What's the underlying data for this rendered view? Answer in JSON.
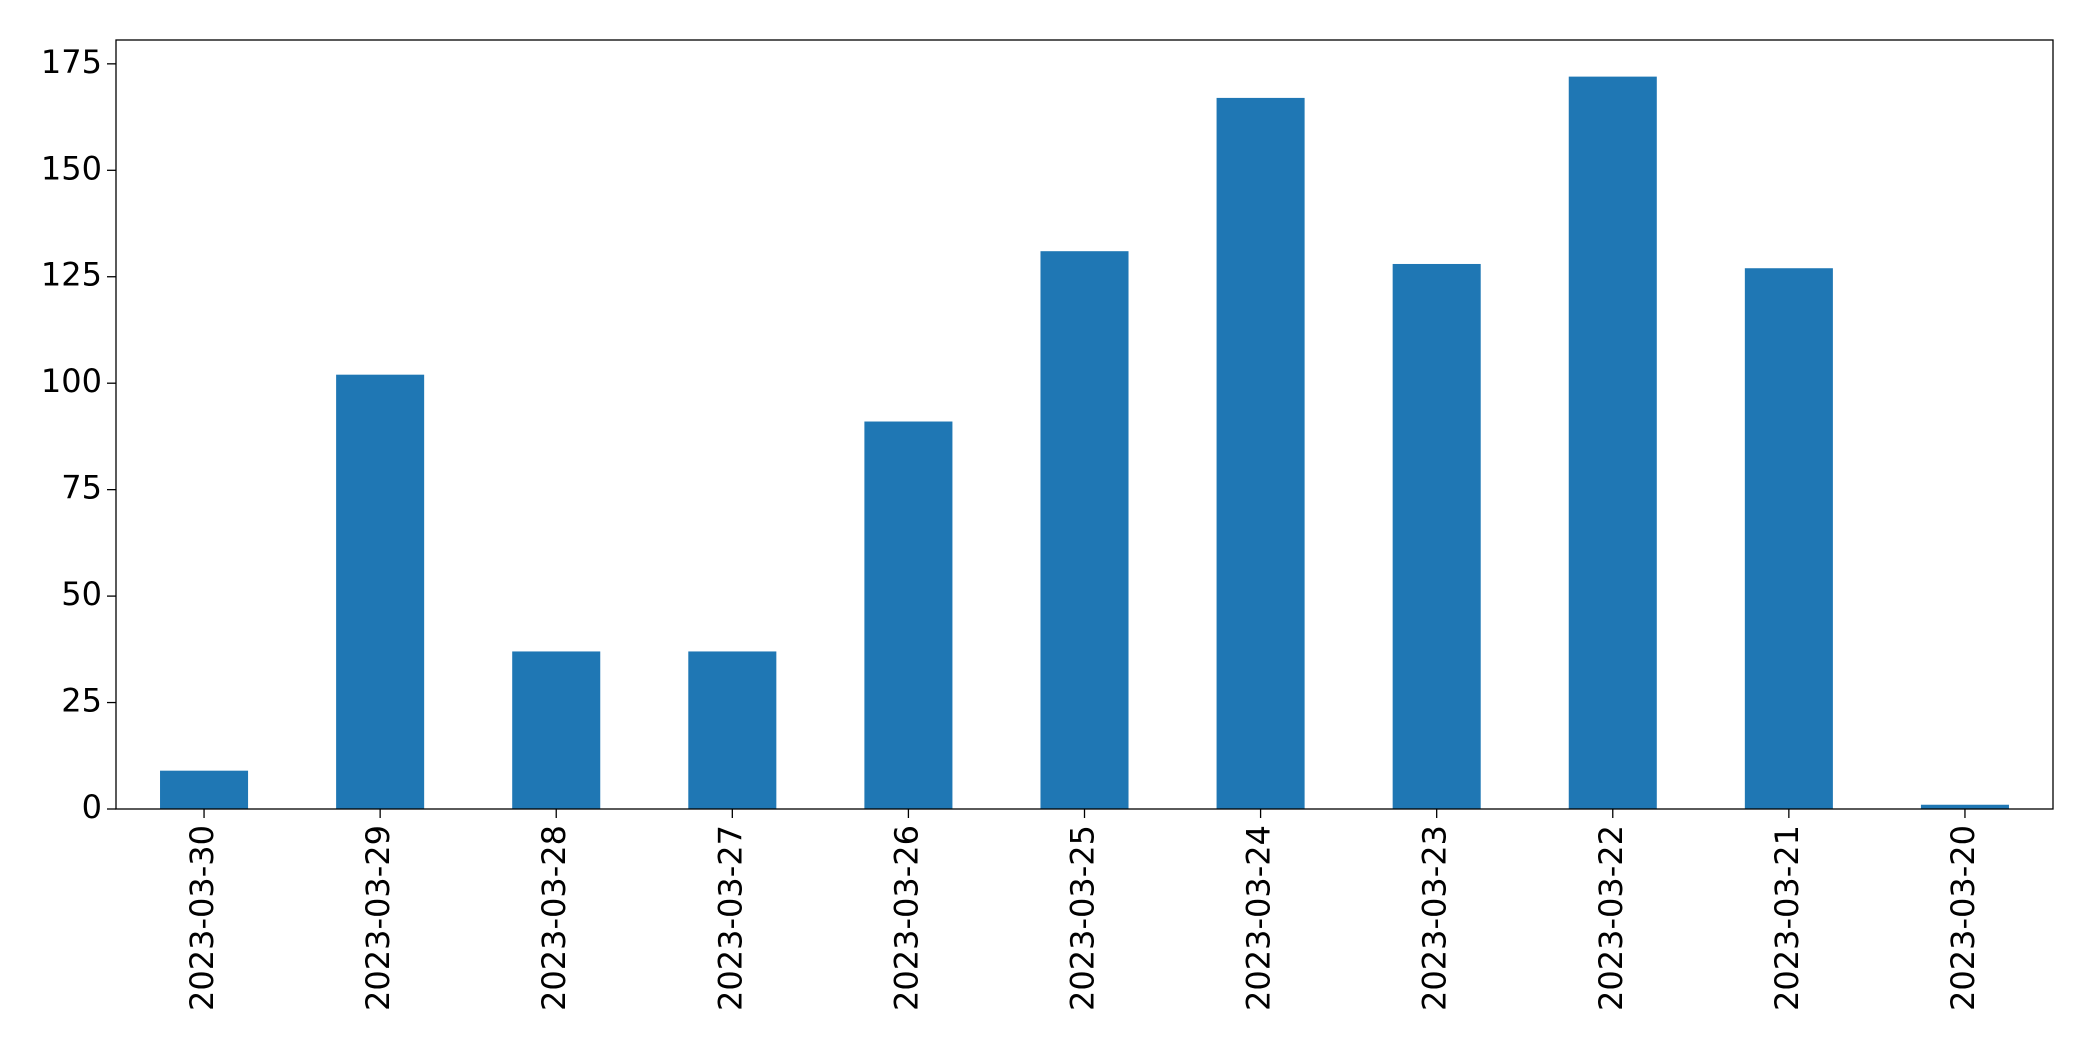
{
  "chart_data": {
    "type": "bar",
    "categories": [
      "2023-03-30",
      "2023-03-29",
      "2023-03-28",
      "2023-03-27",
      "2023-03-26",
      "2023-03-25",
      "2023-03-24",
      "2023-03-23",
      "2023-03-22",
      "2023-03-21",
      "2023-03-20"
    ],
    "values": [
      9,
      102,
      37,
      37,
      91,
      131,
      167,
      128,
      172,
      127,
      1
    ],
    "color": "#1f77b4",
    "ylim": [
      0,
      180.6
    ],
    "yticks": [
      0,
      25,
      50,
      75,
      100,
      125,
      150,
      175
    ],
    "grid": false
  }
}
